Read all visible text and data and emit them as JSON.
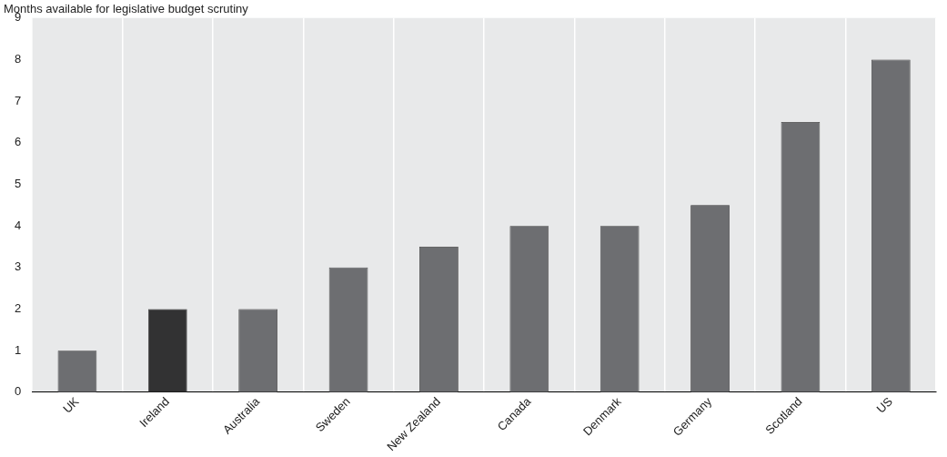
{
  "chart_data": {
    "type": "bar",
    "ylabel": "Months available for legislative budget scrutiny",
    "categories": [
      "UK",
      "Ireland",
      "Australia",
      "Sweden",
      "New Zealand",
      "Canada",
      "Denmark",
      "Germany",
      "Scotland",
      "US"
    ],
    "values": [
      1,
      2,
      2,
      3,
      3.5,
      4,
      4,
      4.5,
      6.5,
      8
    ],
    "colors": [
      "#6d6e71",
      "#323233",
      "#6d6e71",
      "#6d6e71",
      "#6d6e71",
      "#6d6e71",
      "#6d6e71",
      "#6d6e71",
      "#6d6e71",
      "#6d6e71"
    ],
    "ylim": [
      0,
      9
    ],
    "yticks": [
      0,
      1,
      2,
      3,
      4,
      5,
      6,
      7,
      8,
      9
    ],
    "grid": "x",
    "legend": false
  }
}
